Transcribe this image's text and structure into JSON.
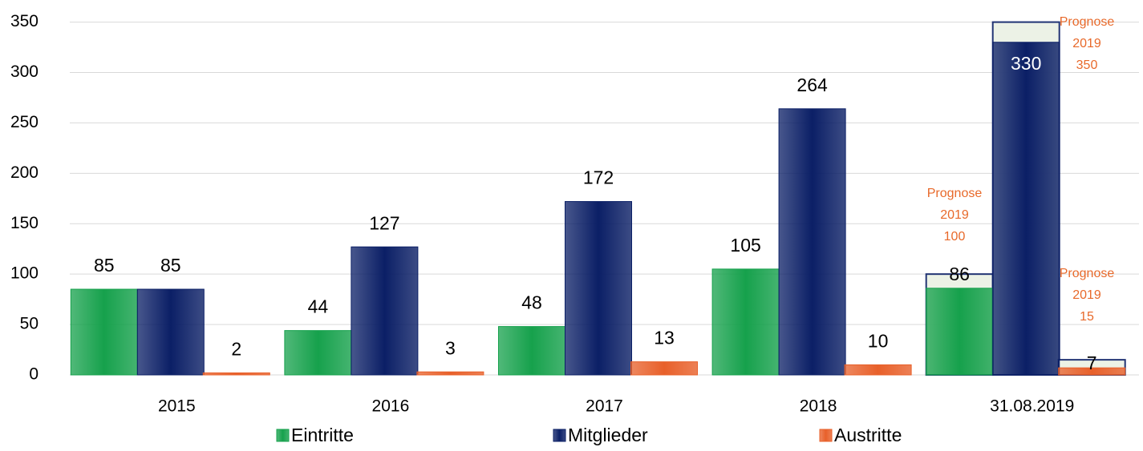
{
  "chart_data": {
    "type": "bar",
    "categories": [
      "2015",
      "2016",
      "2017",
      "2018",
      "31.08.2019"
    ],
    "series": [
      {
        "name": "Eintritte",
        "color": "#16a14c",
        "values": [
          85,
          44,
          48,
          105,
          86
        ]
      },
      {
        "name": "Mitglieder",
        "color": "#0b1f66",
        "values": [
          85,
          127,
          172,
          264,
          330
        ]
      },
      {
        "name": "Austritte",
        "color": "#e8602a",
        "values": [
          2,
          3,
          13,
          10,
          7
        ]
      }
    ],
    "forecast": {
      "lines": [
        "Prognose",
        "2019"
      ],
      "values": [
        100,
        350,
        15
      ],
      "color": "#e8692a"
    },
    "ylim": [
      0,
      360
    ],
    "yticks": [
      0,
      50,
      100,
      150,
      200,
      250,
      300,
      350
    ],
    "grid": true,
    "legend": "bottom"
  }
}
